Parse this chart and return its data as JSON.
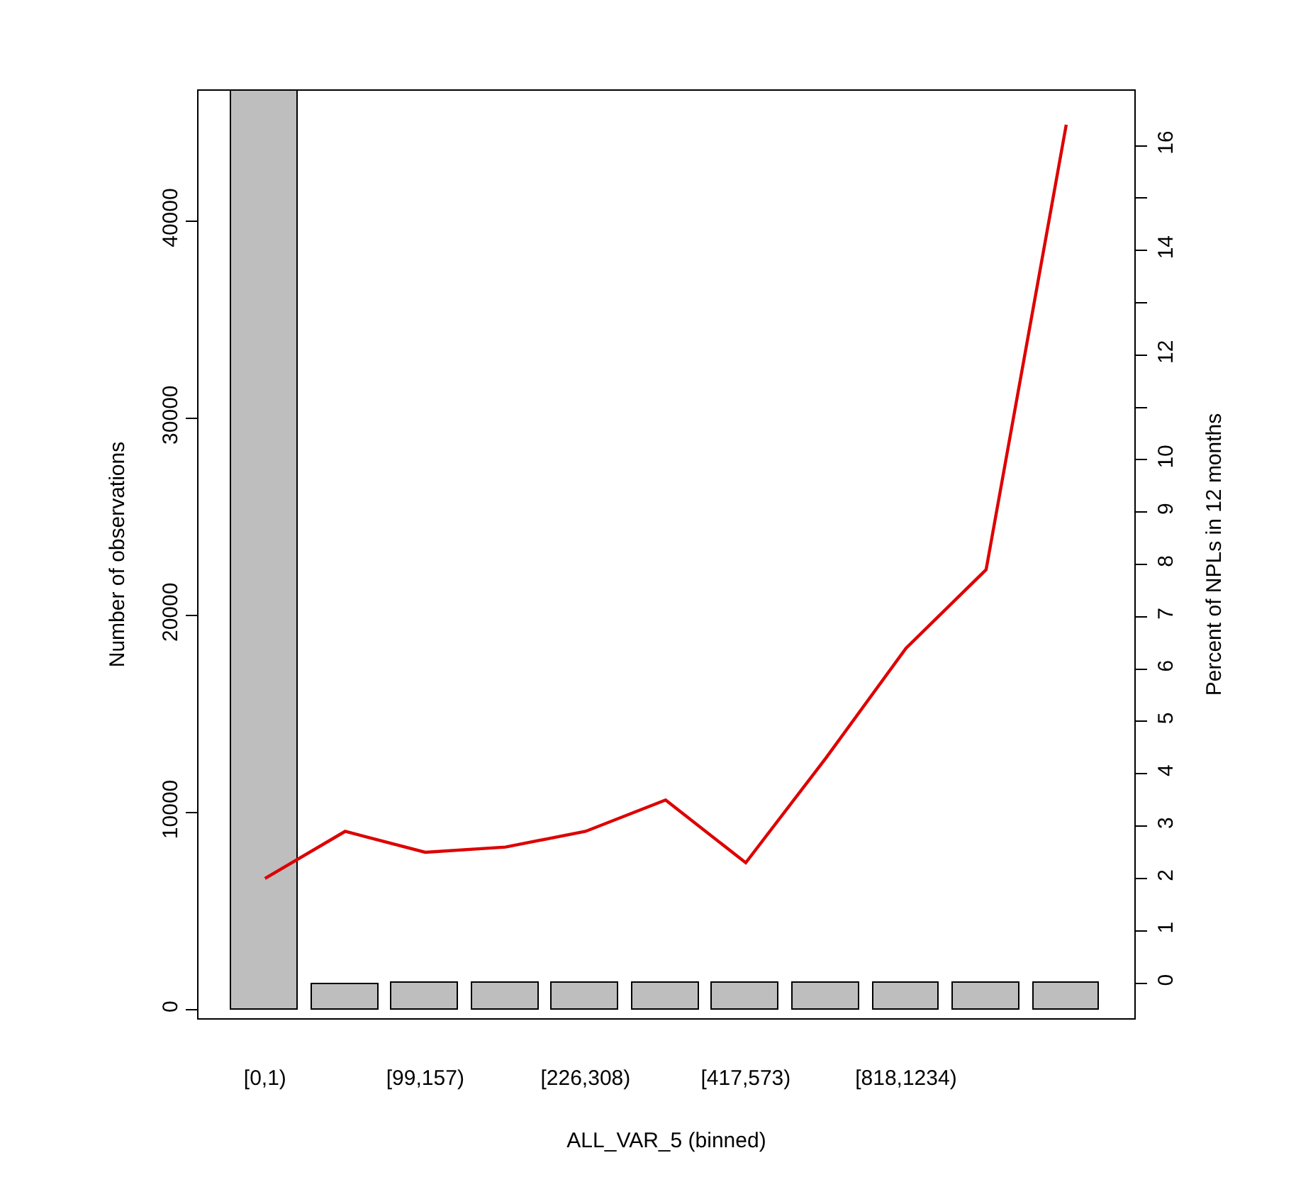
{
  "chart_data": {
    "type": "bar",
    "xlabel": "ALL_VAR_5 (binned)",
    "ylabel": "Number of observations",
    "y2label": "Percent of NPLs in 12 months",
    "categories": [
      "[0,1)",
      null,
      "[99,157)",
      null,
      "[226,308)",
      null,
      "[417,573)",
      null,
      "[818,1234)",
      null,
      null
    ],
    "series": [
      {
        "color": "#bebebe",
        "values": [
          46600,
          1300,
          1400,
          1400,
          1400,
          1400,
          1400,
          1400,
          1400,
          1400,
          1400
        ]
      },
      {
        "type": "line",
        "axis": "y2",
        "color": "#dd0000",
        "values": [
          2.0,
          2.9,
          2.5,
          2.6,
          2.9,
          3.5,
          2.3,
          4.3,
          6.4,
          7.9,
          16.4
        ]
      }
    ],
    "ylim": [
      -430,
      46600
    ],
    "yticks": [
      0,
      10000,
      20000,
      30000,
      40000
    ],
    "y2lim": [
      -0.67,
      17.05
    ],
    "y2ticks": [
      0,
      1,
      2,
      3,
      4,
      5,
      6,
      7,
      8,
      9,
      10,
      {
        "value": 11,
        "label": null
      },
      12,
      {
        "value": 13,
        "label": null
      },
      14,
      {
        "value": 15,
        "label": null
      },
      16
    ],
    "grid": false,
    "legend": false,
    "marker": "none",
    "line_style": "solid"
  }
}
